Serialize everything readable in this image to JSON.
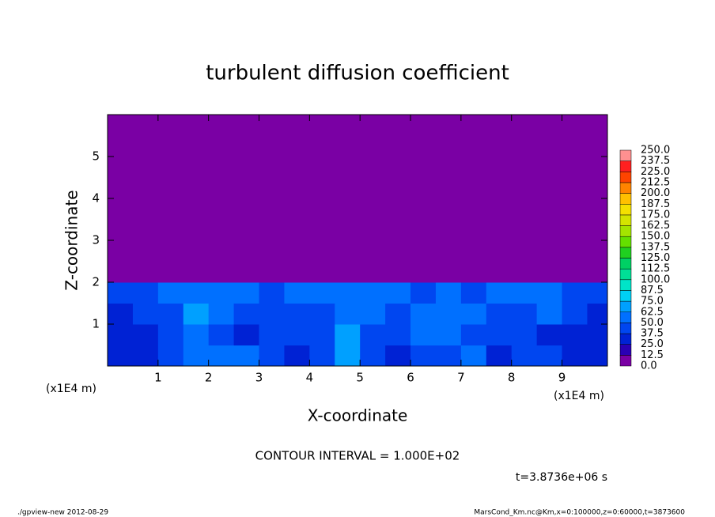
{
  "chart_data": {
    "type": "heatmap",
    "title": "turbulent diffusion coefficient",
    "x_label": "X-coordinate",
    "y_label": "Z-coordinate",
    "x_unit": "(x1E4 m)",
    "annotation": "CONTOUR INTERVAL = 1.000E+02",
    "time_label": "t=3.8736e+06 s",
    "footer_left": "./gpview-new  2012-08-29",
    "footer_right": "MarsCond_Km.nc@Km,x=0:100000,z=0:60000,t=3873600",
    "xlim": [
      0,
      9.9
    ],
    "ylim": [
      0,
      6
    ],
    "xticks": [
      1,
      2,
      3,
      4,
      5,
      6,
      7,
      8,
      9
    ],
    "yticks": [
      1,
      2,
      3,
      4,
      5
    ],
    "x": [
      0.25,
      0.75,
      1.25,
      1.75,
      2.25,
      2.75,
      3.25,
      3.75,
      4.25,
      4.75,
      5.25,
      5.75,
      6.25,
      6.75,
      7.25,
      7.75,
      8.25,
      8.75,
      9.25,
      9.75
    ],
    "y": [
      0.25,
      0.75,
      1.25,
      1.75,
      2.25,
      2.75,
      3.25,
      3.75,
      4.25,
      4.75,
      5.25,
      5.75
    ],
    "z": [
      [
        35,
        35,
        40,
        55,
        60,
        50,
        40,
        35,
        40,
        70,
        40,
        35,
        40,
        45,
        55,
        35,
        40,
        45,
        35,
        35
      ],
      [
        35,
        35,
        40,
        60,
        45,
        35,
        40,
        40,
        45,
        65,
        45,
        40,
        55,
        50,
        45,
        40,
        40,
        35,
        35,
        35
      ],
      [
        35,
        40,
        45,
        65,
        50,
        45,
        40,
        45,
        45,
        55,
        50,
        45,
        50,
        60,
        60,
        45,
        45,
        50,
        40,
        35
      ],
      [
        40,
        45,
        50,
        55,
        60,
        50,
        45,
        50,
        55,
        55,
        60,
        55,
        45,
        50,
        45,
        55,
        55,
        50,
        45,
        40
      ],
      [
        0,
        0,
        0,
        0,
        0,
        0,
        0,
        0,
        0,
        0,
        0,
        0,
        0,
        0,
        0,
        0,
        0,
        0,
        0,
        0
      ],
      [
        0,
        0,
        0,
        0,
        0,
        0,
        0,
        0,
        0,
        0,
        0,
        0,
        0,
        0,
        0,
        0,
        0,
        0,
        0,
        0
      ],
      [
        0,
        0,
        0,
        0,
        0,
        0,
        0,
        0,
        0,
        0,
        0,
        0,
        0,
        0,
        0,
        0,
        0,
        0,
        0,
        0
      ],
      [
        0,
        0,
        0,
        0,
        0,
        0,
        0,
        0,
        0,
        0,
        0,
        0,
        0,
        0,
        0,
        0,
        0,
        0,
        0,
        0
      ],
      [
        0,
        0,
        0,
        0,
        0,
        0,
        0,
        0,
        0,
        0,
        0,
        0,
        0,
        0,
        0,
        0,
        0,
        0,
        0,
        0
      ],
      [
        0,
        0,
        0,
        0,
        0,
        0,
        0,
        0,
        0,
        0,
        0,
        0,
        0,
        0,
        0,
        0,
        0,
        0,
        0,
        0
      ],
      [
        0,
        0,
        0,
        0,
        0,
        0,
        0,
        0,
        0,
        0,
        0,
        0,
        0,
        0,
        0,
        0,
        0,
        0,
        0,
        0
      ],
      [
        0,
        0,
        0,
        0,
        0,
        0,
        0,
        0,
        0,
        0,
        0,
        0,
        0,
        0,
        0,
        0,
        0,
        0,
        0,
        0
      ]
    ],
    "levels": [
      {
        "value": 0,
        "label": "0.0"
      },
      12.5,
      {
        "value": 25,
        "label": "25.0"
      },
      37.5,
      {
        "value": 50,
        "label": "50.0"
      },
      62.5,
      {
        "value": 75,
        "label": "75.0"
      },
      87.5,
      {
        "value": 100,
        "label": "100.0"
      },
      112.5,
      {
        "value": 125,
        "label": "125.0"
      },
      137.5,
      {
        "value": 150,
        "label": "150.0"
      },
      162.5,
      {
        "value": 175,
        "label": "175.0"
      },
      187.5,
      {
        "value": 200,
        "label": "200.0"
      },
      212.5,
      {
        "value": 225,
        "label": "225.0"
      },
      237.5,
      {
        "value": 250,
        "label": "250.0"
      }
    ],
    "colors": [
      "#7a00a4",
      "#2a00b4",
      "#0022d4",
      "#0046f0",
      "#0070ff",
      "#00a0ff",
      "#00d0f4",
      "#00e4c8",
      "#00e096",
      "#00d064",
      "#20d020",
      "#64e000",
      "#a4e400",
      "#d4e400",
      "#f4e000",
      "#ffc000",
      "#ff8400",
      "#ff4400",
      "#ff2020",
      "#ff9090"
    ]
  }
}
